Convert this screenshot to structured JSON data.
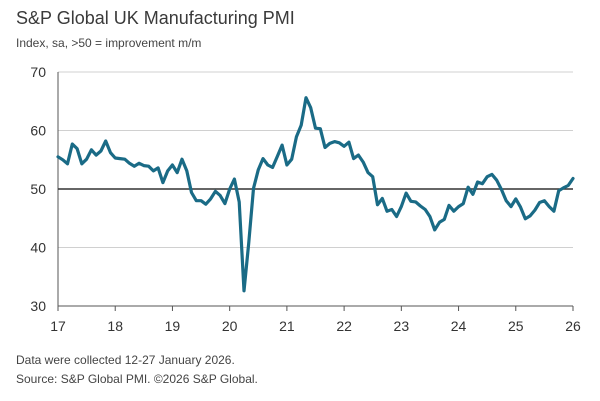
{
  "header": {
    "title": "S&P Global UK Manufacturing PMI",
    "subtitle": "Index, sa, >50 = improvement m/m"
  },
  "footer": {
    "note1": "Data were collected 12-27 January 2026.",
    "note2": "Source: S&P Global PMI. ©2026 S&P Global."
  },
  "colors": {
    "line": "#1a6b86",
    "grid": "#d0d0d0",
    "axis": "#555555",
    "baseline": "#333333"
  },
  "chart_data": {
    "type": "line",
    "title": "S&P Global UK Manufacturing PMI",
    "subtitle": "Index, sa, >50 = improvement m/m",
    "xlim": [
      2017,
      2026
    ],
    "ylim": [
      30,
      70
    ],
    "x_ticks": [
      2017,
      2018,
      2019,
      2020,
      2021,
      2022,
      2023,
      2024,
      2025,
      2026
    ],
    "x_tick_labels": [
      "17",
      "18",
      "19",
      "20",
      "21",
      "22",
      "23",
      "24",
      "25",
      "26"
    ],
    "y_ticks": [
      30,
      40,
      50,
      60,
      70
    ],
    "y_tick_labels": [
      "30",
      "40",
      "50",
      "60",
      "70"
    ],
    "grid": "horizontal",
    "reference_line": 50,
    "series": [
      {
        "start": "2017-01",
        "frequency": "monthly",
        "values": [
          55.5,
          55.0,
          54.3,
          57.7,
          56.9,
          54.3,
          55.1,
          56.7,
          55.8,
          56.5,
          58.2,
          56.2,
          55.3,
          55.2,
          55.1,
          54.4,
          53.9,
          54.4,
          54.0,
          53.9,
          53.1,
          53.6,
          51.1,
          53.1,
          54.1,
          52.8,
          55.1,
          53.1,
          49.4,
          48.0,
          48.0,
          47.4,
          48.3,
          49.6,
          48.9,
          47.5,
          50.0,
          51.7,
          47.8,
          32.6,
          40.7,
          50.1,
          53.3,
          55.2,
          54.1,
          53.7,
          55.6,
          57.5,
          54.1,
          55.1,
          58.9,
          60.9,
          65.6,
          63.9,
          60.4,
          60.3,
          57.1,
          57.8,
          58.1,
          57.9,
          57.3,
          58.0,
          55.2,
          55.8,
          54.6,
          52.8,
          52.1,
          47.3,
          48.4,
          46.2,
          46.5,
          45.3,
          47.0,
          49.3,
          47.9,
          47.8,
          47.1,
          46.5,
          45.3,
          43.0,
          44.3,
          44.8,
          47.2,
          46.2,
          47.0,
          47.5,
          50.3,
          49.1,
          51.2,
          50.9,
          52.1,
          52.5,
          51.5,
          49.9,
          48.0,
          47.0,
          48.3,
          46.9,
          44.9,
          45.4,
          46.4,
          47.7,
          48.0,
          47.0,
          46.2,
          49.7,
          50.2,
          50.6,
          51.8
        ]
      }
    ]
  }
}
